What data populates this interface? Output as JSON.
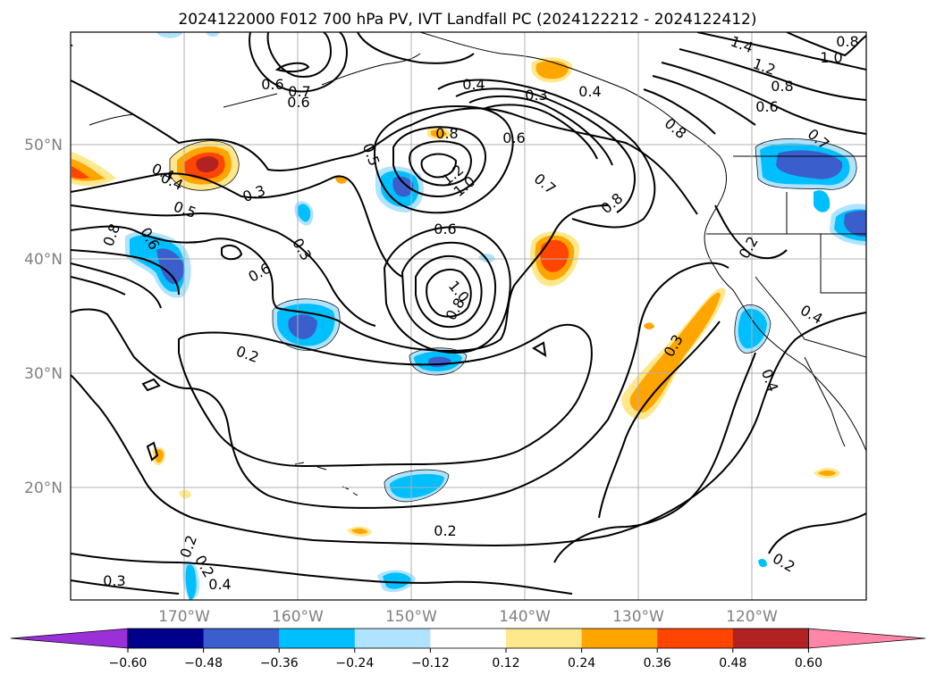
{
  "title": "2024122000 F012 700 hPa PV, IVT Landfall PC (2024122212 - 2024122412)",
  "map": {
    "latitude_labels": [
      "50°N",
      "40°N",
      "30°N",
      "20°N"
    ],
    "longitude_labels": [
      "170°W",
      "160°W",
      "150°W",
      "140°W",
      "130°W",
      "120°W"
    ],
    "grid": true
  },
  "contour_labels": [
    "0.4",
    "0.6",
    "0.7",
    "0.6",
    "0.3",
    "0.4",
    "1.4",
    "1.2",
    "1.0",
    "0.8",
    "0.8",
    "0.6",
    "0.8",
    "0.6",
    "0.8",
    "0.5",
    "1.2",
    "1.0",
    "0.7",
    "0.8",
    "0.7",
    "0.4",
    "0.4",
    "0.3",
    "0.5",
    "0.8",
    "0.6",
    "0.6",
    "0.3",
    "0.6",
    "0.2",
    "1.0",
    "0.8",
    "0.2",
    "0.2",
    "0.3",
    "0.4",
    "0.4",
    "0.2",
    "0.2",
    "0.2",
    "0.3",
    "0.4",
    "0.4"
  ],
  "colorbar": {
    "ticks": [
      "−0.60",
      "−0.48",
      "−0.36",
      "−0.24",
      "−0.12",
      "0.12",
      "0.24",
      "0.36",
      "0.48",
      "0.60"
    ],
    "colors": [
      "#9b30d9",
      "#00008b",
      "#3a5fcd",
      "#00bfff",
      "#afe3ff",
      "#ffffff",
      "#ffe88c",
      "#ffa500",
      "#ff4500",
      "#b22222",
      "#ff85a9"
    ]
  },
  "colors": {
    "positive_light": "#ffe88c",
    "positive_mid": "#ffa500",
    "positive_strong": "#ff4500",
    "positive_max": "#b22222",
    "negative_light": "#afe3ff",
    "negative_mid": "#00bfff",
    "negative_strong": "#3a5fcd"
  }
}
